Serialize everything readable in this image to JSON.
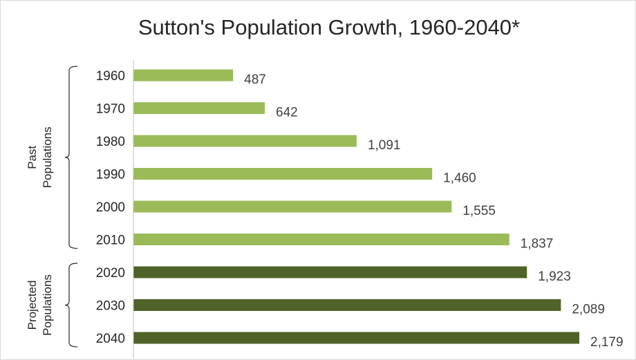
{
  "chart_data": {
    "type": "bar",
    "orientation": "horizontal",
    "title": "Sutton's Population Growth, 1960-2040*",
    "categories": [
      "1960",
      "1970",
      "1980",
      "1990",
      "2000",
      "2010",
      "2020",
      "2030",
      "2040"
    ],
    "values": [
      487,
      642,
      1091,
      1460,
      1555,
      1837,
      1923,
      2089,
      2179
    ],
    "data_labels": [
      "487",
      "642",
      "1,091",
      "1,460",
      "1,555",
      "1,837",
      "1,923",
      "2,089",
      "2,179"
    ],
    "groups": [
      {
        "label_lines": [
          "Past",
          "Populations"
        ],
        "categories": [
          "1960",
          "1970",
          "1980",
          "1990",
          "2000",
          "2010"
        ],
        "color": "#9bbb59"
      },
      {
        "label_lines": [
          "Projected",
          "Populations"
        ],
        "categories": [
          "2020",
          "2030",
          "2040"
        ],
        "color": "#4f6228"
      }
    ],
    "xlim": [
      0,
      2200
    ],
    "grid": false,
    "legend": "none"
  }
}
